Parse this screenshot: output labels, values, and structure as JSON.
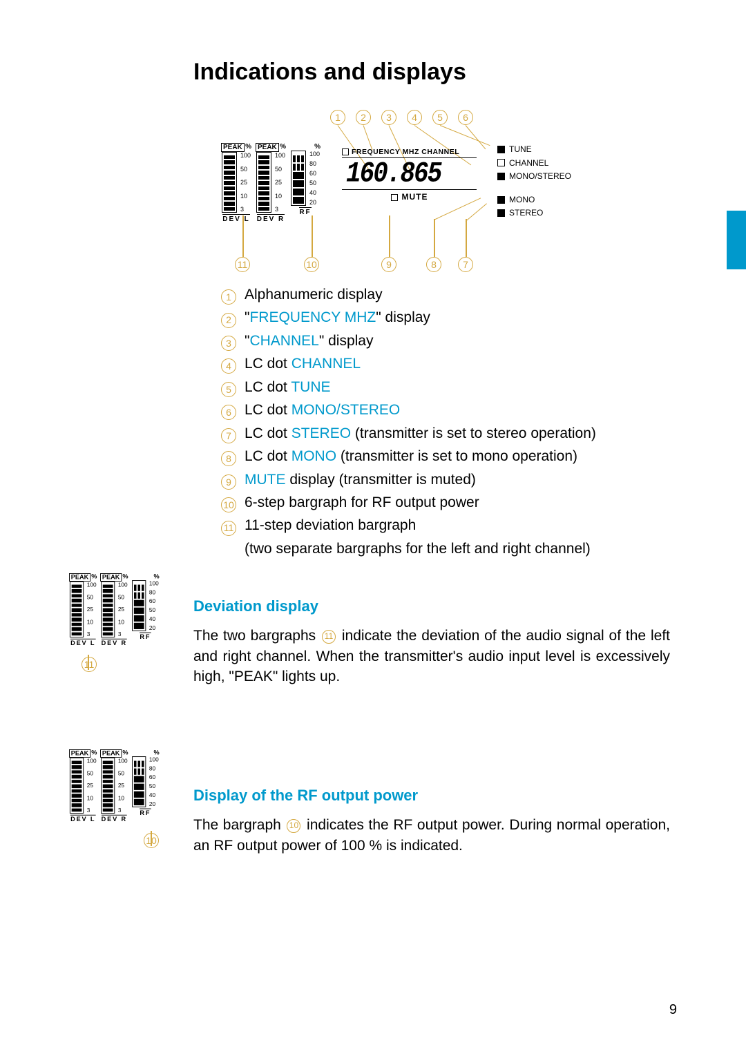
{
  "title": "Indications and displays",
  "page_number": "9",
  "accent_color": "#0099cc",
  "callout_color": "#d4a840",
  "frequency_value": "160.865",
  "freq_header": "FREQUENCY MHZ CHANNEL",
  "mute_label": "MUTE",
  "right_labels": {
    "tune": "TUNE",
    "channel": "CHANNEL",
    "monostereo": "MONO/STEREO",
    "mono": "MONO",
    "stereo": "STEREO"
  },
  "bar_labels": {
    "peak": "PEAK",
    "pct": "%",
    "dev_l": "DEV  L",
    "dev_r": "DEV  R",
    "rf": "RF",
    "ticks11": [
      "100",
      "50",
      "25",
      "10",
      "3"
    ],
    "ticks6": [
      "100",
      "80",
      "60",
      "50",
      "40",
      "20"
    ]
  },
  "legend": [
    {
      "n": "1",
      "pre": "",
      "hl": "",
      "post": "Alphanumeric display"
    },
    {
      "n": "2",
      "pre": "\"",
      "hl": "FREQUENCY MHZ",
      "post": "\" display"
    },
    {
      "n": "3",
      "pre": "\"",
      "hl": "CHANNEL",
      "post": "\" display"
    },
    {
      "n": "4",
      "pre": "LC dot ",
      "hl": "CHANNEL",
      "post": ""
    },
    {
      "n": "5",
      "pre": "LC dot ",
      "hl": "TUNE",
      "post": ""
    },
    {
      "n": "6",
      "pre": "LC dot ",
      "hl": "MONO/STEREO",
      "post": ""
    },
    {
      "n": "7",
      "pre": "LC dot ",
      "hl": "STEREO",
      "post": " (transmitter is set to stereo operation)"
    },
    {
      "n": "8",
      "pre": "LC dot ",
      "hl": "MONO",
      "post": " (transmitter is set to mono operation)"
    },
    {
      "n": "9",
      "pre": "",
      "hl": "MUTE",
      "post": " display (transmitter is muted)"
    },
    {
      "n": "10",
      "pre": "",
      "hl": "",
      "post": "6-step bargraph for RF output power"
    },
    {
      "n": "11",
      "pre": "",
      "hl": "",
      "post": "11-step deviation bargraph"
    }
  ],
  "legend_11_extra": "(two separate bargraphs for the left and right channel)",
  "section_dev": {
    "heading": "Deviation display",
    "text_a": "The two bargraphs ",
    "ref": "11",
    "text_b": " indicate the deviation of the audio signal of the left and right channel. When the transmitter's audio input level is excessively high, \"PEAK\" lights up."
  },
  "section_rf": {
    "heading": "Display of the RF output power",
    "text_a": "The bargraph ",
    "ref": "10",
    "text_b": " indicates the RF output power. During normal operation, an RF output power of 100 % is indicated."
  }
}
